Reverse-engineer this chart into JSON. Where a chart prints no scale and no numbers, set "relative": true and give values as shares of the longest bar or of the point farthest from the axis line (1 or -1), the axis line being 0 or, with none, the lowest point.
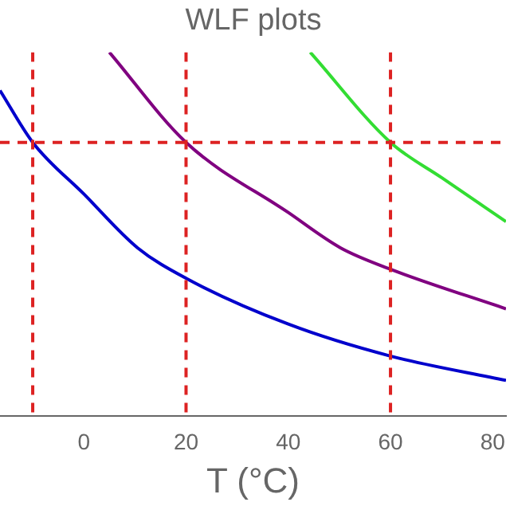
{
  "chart_data": {
    "type": "line",
    "title": "WLF plots",
    "xlabel": "T (°C)",
    "relative": true,
    "xlim": [
      -16.4,
      82.6
    ],
    "xticks": [
      0,
      20,
      40,
      60,
      80
    ],
    "series": [
      {
        "color": "#0000cc",
        "x": [
          -16.4,
          -10,
          0,
          10.5,
          20,
          40,
          60,
          82.6
        ],
        "values": [
          0.895,
          0.752,
          0.61,
          0.462,
          0.378,
          0.252,
          0.164,
          0.097
        ]
      },
      {
        "color": "#800080",
        "x": [
          5,
          20,
          40,
          50.2,
          60,
          82.6
        ],
        "values": [
          1.0,
          0.752,
          0.559,
          0.462,
          0.403,
          0.294
        ]
      },
      {
        "color": "#33dd33",
        "x": [
          44.3,
          60,
          70,
          82.6
        ],
        "values": [
          1.0,
          0.752,
          0.655,
          0.534
        ]
      }
    ],
    "ref_lines": [
      {
        "axis": "x",
        "value": -10,
        "color": "#dd2222",
        "line_style": "dashed"
      },
      {
        "axis": "x",
        "value": 20,
        "color": "#dd2222",
        "line_style": "dashed"
      },
      {
        "axis": "x",
        "value": 60,
        "color": "#dd2222",
        "line_style": "dashed"
      },
      {
        "axis": "y",
        "value": 0.752,
        "color": "#dd2222",
        "line_style": "dashed"
      }
    ]
  }
}
